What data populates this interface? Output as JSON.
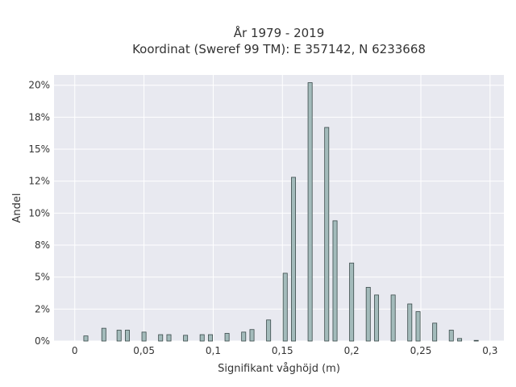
{
  "chart_data": {
    "type": "bar",
    "title_lines": [
      "År 1979 - 2019",
      "Koordinat (Sweref 99 TM): E 357142, N 6233668"
    ],
    "xlabel": "Signifikant våghöjd (m)",
    "ylabel": "Andel",
    "xlim": [
      -0.015,
      0.31
    ],
    "ylim": [
      0,
      20.8
    ],
    "xticks": [
      {
        "value": 0,
        "label": "0"
      },
      {
        "value": 0.05,
        "label": "0,05"
      },
      {
        "value": 0.1,
        "label": "0,1"
      },
      {
        "value": 0.15,
        "label": "0,15"
      },
      {
        "value": 0.2,
        "label": "0,2"
      },
      {
        "value": 0.25,
        "label": "0,25"
      },
      {
        "value": 0.3,
        "label": "0,3"
      }
    ],
    "yticks": [
      {
        "value": 0,
        "label": "0%"
      },
      {
        "value": 2.5,
        "label": "2%"
      },
      {
        "value": 5,
        "label": "5%"
      },
      {
        "value": 7.5,
        "label": "8%"
      },
      {
        "value": 10,
        "label": "10%"
      },
      {
        "value": 12.5,
        "label": "12%"
      },
      {
        "value": 15,
        "label": "15%"
      },
      {
        "value": 17.5,
        "label": "18%"
      },
      {
        "value": 20,
        "label": "20%"
      }
    ],
    "grid": true,
    "bar_width": 0.003,
    "colors": {
      "bar_fill": "#a3bbbb",
      "bar_stroke": "#3a4a4a",
      "plot_bg": "#e8e9f0",
      "grid": "#ffffff"
    },
    "bins": [
      {
        "x": 0.008,
        "y": 0.4
      },
      {
        "x": 0.021,
        "y": 1.0
      },
      {
        "x": 0.032,
        "y": 0.85
      },
      {
        "x": 0.038,
        "y": 0.85
      },
      {
        "x": 0.05,
        "y": 0.7
      },
      {
        "x": 0.062,
        "y": 0.5
      },
      {
        "x": 0.068,
        "y": 0.5
      },
      {
        "x": 0.08,
        "y": 0.45
      },
      {
        "x": 0.092,
        "y": 0.5
      },
      {
        "x": 0.098,
        "y": 0.5
      },
      {
        "x": 0.11,
        "y": 0.6
      },
      {
        "x": 0.122,
        "y": 0.7
      },
      {
        "x": 0.128,
        "y": 0.9
      },
      {
        "x": 0.14,
        "y": 1.65
      },
      {
        "x": 0.152,
        "y": 5.3
      },
      {
        "x": 0.158,
        "y": 12.8
      },
      {
        "x": 0.17,
        "y": 20.2
      },
      {
        "x": 0.182,
        "y": 16.7
      },
      {
        "x": 0.188,
        "y": 9.4
      },
      {
        "x": 0.2,
        "y": 6.1
      },
      {
        "x": 0.212,
        "y": 4.2
      },
      {
        "x": 0.218,
        "y": 3.6
      },
      {
        "x": 0.23,
        "y": 3.6
      },
      {
        "x": 0.242,
        "y": 2.9
      },
      {
        "x": 0.248,
        "y": 2.3
      },
      {
        "x": 0.26,
        "y": 1.4
      },
      {
        "x": 0.272,
        "y": 0.85
      },
      {
        "x": 0.278,
        "y": 0.2
      },
      {
        "x": 0.29,
        "y": 0.05
      }
    ]
  }
}
